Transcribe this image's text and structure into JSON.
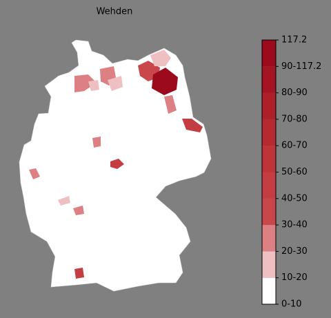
{
  "title": "Wehden",
  "colorbar": {
    "labels": [
      "0-10",
      "10-20",
      "20-30",
      "30-40",
      "40-50",
      "50-60",
      "60-70",
      "70-80",
      "80-90",
      "90-117.2",
      "117.2"
    ],
    "colors": [
      "#ffffff",
      "#efc0c2",
      "#dc8083",
      "#c9474b",
      "#c43d42",
      "#bd3439",
      "#b52a31",
      "#ad1f29",
      "#a51423",
      "#9b0a1d"
    ]
  }
}
